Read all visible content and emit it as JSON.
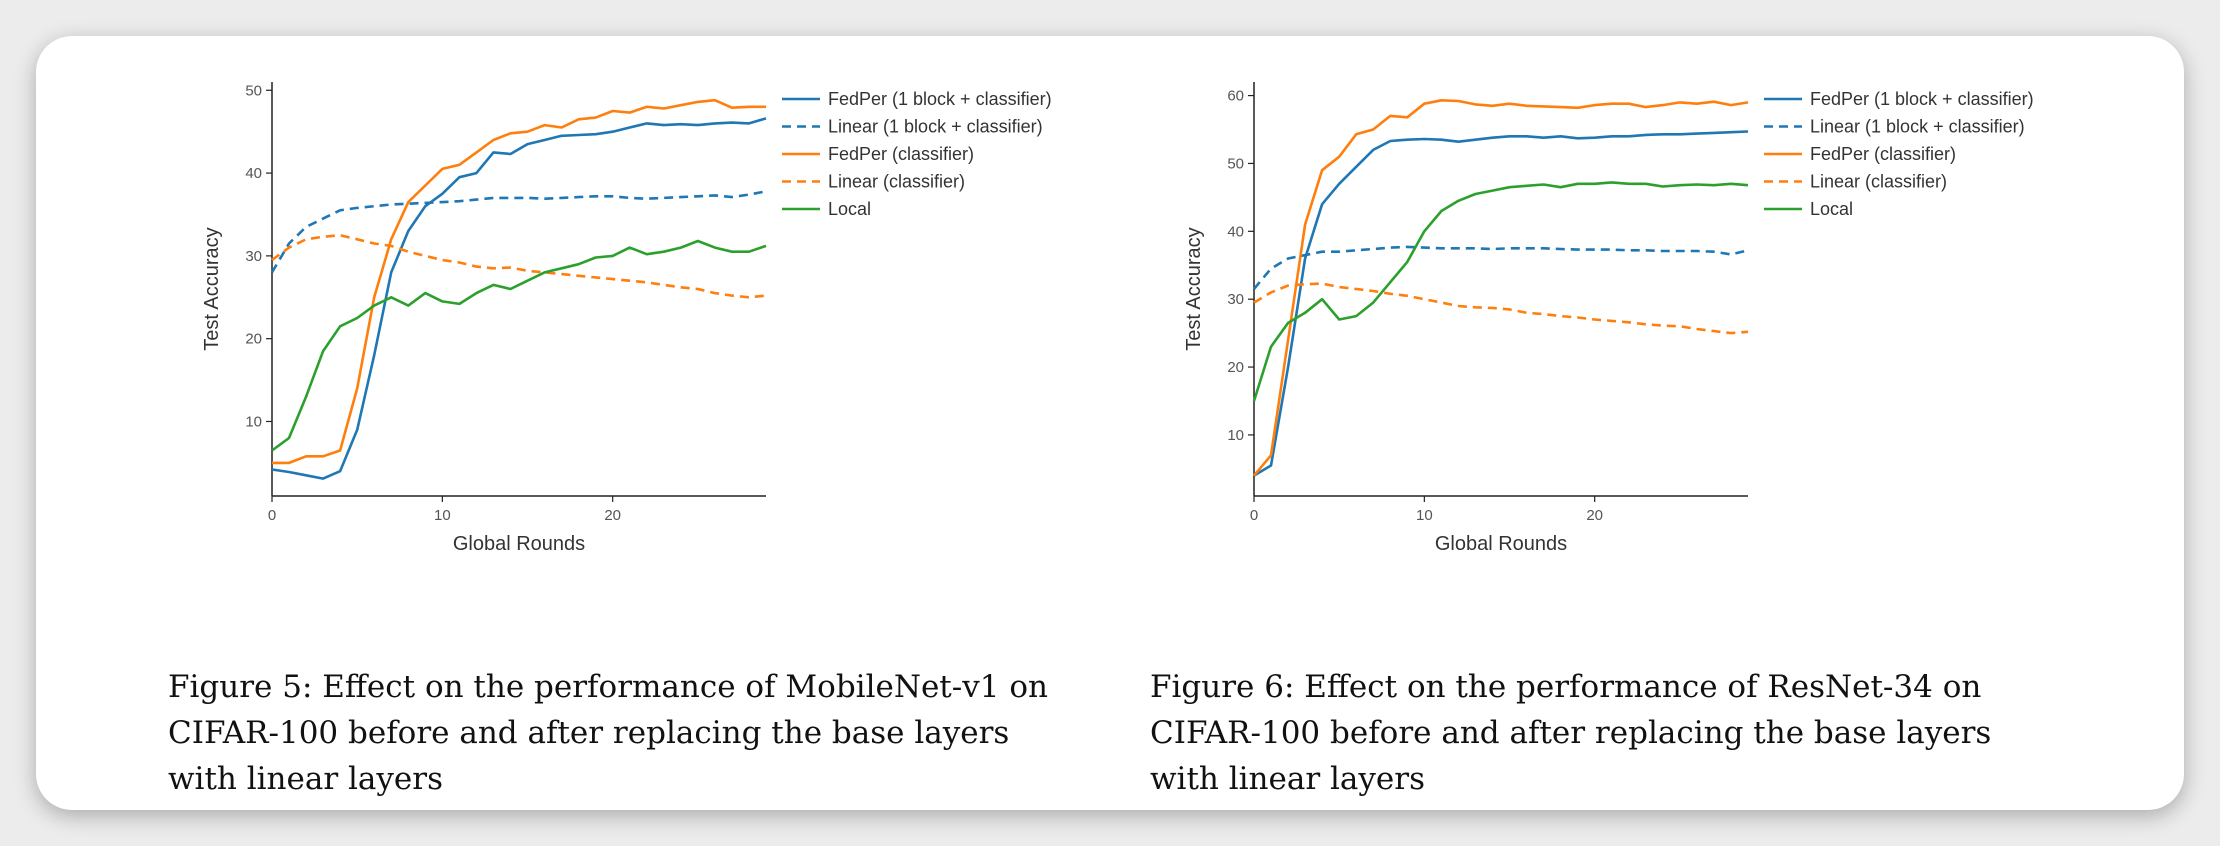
{
  "figures": [
    {
      "caption": "Figure 5: Effect on the performance of MobileNet-v1 on CIFAR-100 before and after replacing the base layers with linear layers"
    },
    {
      "caption": "Figure 6: Effect on the performance of ResNet-34 on CIFAR-100 before and after replacing the base layers with linear layers"
    }
  ],
  "chart_data": [
    {
      "type": "line",
      "title": "",
      "xlabel": "Global Rounds",
      "ylabel": "Test Accuracy",
      "xlim": [
        0,
        29
      ],
      "ylim": [
        1,
        51
      ],
      "xticks": [
        0,
        10,
        20
      ],
      "yticks": [
        10,
        20,
        30,
        40,
        50
      ],
      "grid": false,
      "legend_position": "right",
      "x": [
        0,
        1,
        2,
        3,
        4,
        5,
        6,
        7,
        8,
        9,
        10,
        11,
        12,
        13,
        14,
        15,
        16,
        17,
        18,
        19,
        20,
        21,
        22,
        23,
        24,
        25,
        26,
        27,
        28,
        29
      ],
      "series": [
        {
          "name": "FedPer (1 block + classifier)",
          "color": "#1f77b4",
          "dash": false,
          "values": [
            4.2,
            3.9,
            3.5,
            3.1,
            4.0,
            9.0,
            18.0,
            28.0,
            33.0,
            36.0,
            37.5,
            39.5,
            40.0,
            42.5,
            42.3,
            43.5,
            44.0,
            44.5,
            44.6,
            44.7,
            45.0,
            45.5,
            46.0,
            45.8,
            45.9,
            45.8,
            46.0,
            46.1,
            46.0,
            46.6
          ]
        },
        {
          "name": "Linear (1 block + classifier)",
          "color": "#1f77b4",
          "dash": true,
          "values": [
            28.0,
            31.5,
            33.5,
            34.5,
            35.5,
            35.8,
            36.0,
            36.2,
            36.3,
            36.4,
            36.5,
            36.6,
            36.8,
            37.0,
            37.0,
            37.0,
            36.9,
            37.0,
            37.1,
            37.2,
            37.2,
            37.0,
            36.9,
            37.0,
            37.1,
            37.2,
            37.3,
            37.1,
            37.4,
            37.8
          ]
        },
        {
          "name": "FedPer (classifier)",
          "color": "#ff7f0e",
          "dash": false,
          "values": [
            5.0,
            5.0,
            5.8,
            5.8,
            6.5,
            14.0,
            25.0,
            32.0,
            36.5,
            38.5,
            40.5,
            41.0,
            42.5,
            44.0,
            44.8,
            45.0,
            45.8,
            45.5,
            46.5,
            46.7,
            47.5,
            47.3,
            48.0,
            47.8,
            48.2,
            48.6,
            48.8,
            47.9,
            48.0,
            48.0
          ]
        },
        {
          "name": "Linear (classifier)",
          "color": "#ff7f0e",
          "dash": true,
          "values": [
            29.5,
            31.0,
            32.0,
            32.3,
            32.5,
            32.0,
            31.5,
            31.2,
            30.5,
            30.0,
            29.5,
            29.2,
            28.7,
            28.5,
            28.6,
            28.2,
            28.0,
            27.8,
            27.6,
            27.4,
            27.2,
            27.0,
            26.8,
            26.5,
            26.2,
            26.0,
            25.5,
            25.2,
            25.0,
            25.2
          ]
        },
        {
          "name": "Local",
          "color": "#2ca02c",
          "dash": false,
          "values": [
            6.5,
            8.0,
            13.0,
            18.5,
            21.5,
            22.5,
            24.0,
            25.0,
            24.0,
            25.5,
            24.5,
            24.2,
            25.5,
            26.5,
            26.0,
            27.0,
            28.0,
            28.5,
            29.0,
            29.8,
            30.0,
            31.0,
            30.2,
            30.5,
            31.0,
            31.8,
            31.0,
            30.5,
            30.5,
            31.2
          ]
        }
      ]
    },
    {
      "type": "line",
      "title": "",
      "xlabel": "Global Rounds",
      "ylabel": "Test Accuracy",
      "xlim": [
        0,
        29
      ],
      "ylim": [
        1,
        62
      ],
      "xticks": [
        0,
        10,
        20
      ],
      "yticks": [
        10,
        20,
        30,
        40,
        50,
        60
      ],
      "grid": false,
      "legend_position": "right",
      "x": [
        0,
        1,
        2,
        3,
        4,
        5,
        6,
        7,
        8,
        9,
        10,
        11,
        12,
        13,
        14,
        15,
        16,
        17,
        18,
        19,
        20,
        21,
        22,
        23,
        24,
        25,
        26,
        27,
        28,
        29
      ],
      "series": [
        {
          "name": "FedPer (1 block + classifier)",
          "color": "#1f77b4",
          "dash": false,
          "values": [
            4.0,
            5.5,
            20.0,
            36.0,
            44.0,
            47.0,
            49.5,
            52.0,
            53.3,
            53.5,
            53.6,
            53.5,
            53.2,
            53.5,
            53.8,
            54.0,
            54.0,
            53.8,
            54.0,
            53.7,
            53.8,
            54.0,
            54.0,
            54.2,
            54.3,
            54.3,
            54.4,
            54.5,
            54.6,
            54.7
          ]
        },
        {
          "name": "Linear (1 block + classifier)",
          "color": "#1f77b4",
          "dash": true,
          "values": [
            31.5,
            34.5,
            36.0,
            36.5,
            37.0,
            37.0,
            37.2,
            37.4,
            37.6,
            37.7,
            37.6,
            37.5,
            37.5,
            37.5,
            37.4,
            37.5,
            37.5,
            37.5,
            37.4,
            37.3,
            37.3,
            37.3,
            37.2,
            37.2,
            37.1,
            37.1,
            37.1,
            37.0,
            36.6,
            37.2
          ]
        },
        {
          "name": "FedPer (classifier)",
          "color": "#ff7f0e",
          "dash": false,
          "values": [
            4.0,
            7.0,
            24.0,
            41.0,
            49.0,
            51.0,
            54.3,
            55.0,
            57.0,
            56.8,
            58.8,
            59.3,
            59.2,
            58.7,
            58.5,
            58.8,
            58.5,
            58.4,
            58.3,
            58.2,
            58.6,
            58.8,
            58.8,
            58.3,
            58.6,
            59.0,
            58.8,
            59.1,
            58.6,
            59.0
          ]
        },
        {
          "name": "Linear (classifier)",
          "color": "#ff7f0e",
          "dash": true,
          "values": [
            29.5,
            31.0,
            32.0,
            32.2,
            32.3,
            31.8,
            31.5,
            31.2,
            30.8,
            30.5,
            30.0,
            29.5,
            29.0,
            28.8,
            28.7,
            28.5,
            28.0,
            27.8,
            27.5,
            27.3,
            27.0,
            26.8,
            26.6,
            26.3,
            26.1,
            26.0,
            25.6,
            25.3,
            25.0,
            25.2
          ]
        },
        {
          "name": "Local",
          "color": "#2ca02c",
          "dash": false,
          "values": [
            15.0,
            23.0,
            26.5,
            28.0,
            30.0,
            27.0,
            27.5,
            29.5,
            32.5,
            35.5,
            40.0,
            43.0,
            44.5,
            45.5,
            46.0,
            46.5,
            46.7,
            46.9,
            46.5,
            47.0,
            47.0,
            47.2,
            47.0,
            47.0,
            46.6,
            46.8,
            46.9,
            46.8,
            47.0,
            46.8
          ]
        }
      ]
    }
  ]
}
